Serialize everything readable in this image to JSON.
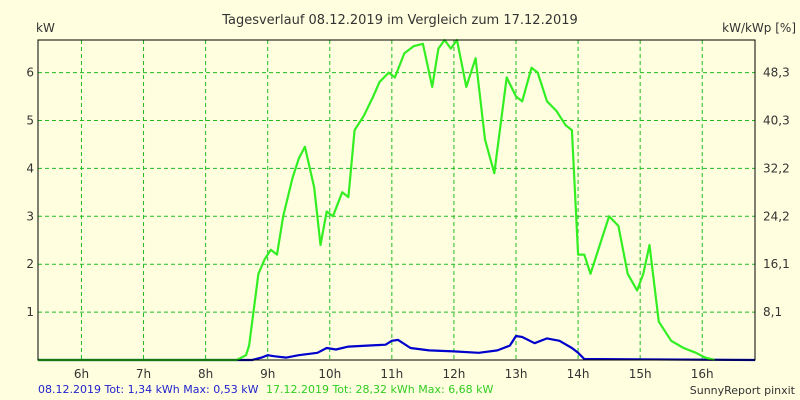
{
  "chart_data": {
    "type": "line",
    "title": "Tagesverlauf 08.12.2019 im Vergleich zum 17.12.2019",
    "ylabel_left": "kW",
    "ylabel_right": "kW/kWp [%]",
    "x_tick_labels": [
      "6h",
      "7h",
      "8h",
      "9h",
      "10h",
      "11h",
      "12h",
      "13h",
      "14h",
      "15h",
      "16h"
    ],
    "x_ticks": [
      6,
      7,
      8,
      9,
      10,
      11,
      12,
      13,
      14,
      15,
      16
    ],
    "xlim": [
      5.3,
      16.85
    ],
    "y_ticks_left": [
      1,
      2,
      3,
      4,
      5,
      6
    ],
    "y_tick_labels_left": [
      "1",
      "2",
      "3",
      "4",
      "5",
      "6"
    ],
    "y_tick_labels_right": [
      "8,1",
      "16,1",
      "24,2",
      "32,2",
      "40,3",
      "48,3"
    ],
    "ylim": [
      0,
      6.68
    ],
    "grid": true,
    "series": [
      {
        "name": "08.12.2019",
        "color": "#0000cc",
        "x": [
          5.3,
          8.75,
          8.9,
          9.0,
          9.1,
          9.3,
          9.5,
          9.8,
          9.95,
          10.1,
          10.3,
          10.6,
          10.9,
          11.0,
          11.1,
          11.3,
          11.6,
          12.0,
          12.4,
          12.7,
          12.9,
          13.0,
          13.1,
          13.3,
          13.5,
          13.7,
          13.9,
          14.0,
          14.1,
          16.85
        ],
        "values": [
          0,
          0,
          0.05,
          0.1,
          0.08,
          0.05,
          0.1,
          0.15,
          0.25,
          0.22,
          0.28,
          0.3,
          0.32,
          0.4,
          0.42,
          0.25,
          0.2,
          0.18,
          0.15,
          0.2,
          0.3,
          0.5,
          0.48,
          0.35,
          0.45,
          0.4,
          0.25,
          0.15,
          0.02,
          0
        ]
      },
      {
        "name": "17.12.2019",
        "color": "#33ee22",
        "x": [
          5.3,
          8.5,
          8.65,
          8.7,
          8.85,
          8.95,
          9.05,
          9.15,
          9.25,
          9.4,
          9.5,
          9.6,
          9.75,
          9.85,
          9.95,
          10.05,
          10.2,
          10.3,
          10.4,
          10.55,
          10.7,
          10.8,
          10.95,
          11.05,
          11.2,
          11.35,
          11.5,
          11.65,
          11.75,
          11.85,
          11.95,
          12.05,
          12.2,
          12.35,
          12.5,
          12.65,
          12.85,
          13.0,
          13.1,
          13.25,
          13.35,
          13.5,
          13.65,
          13.8,
          13.9,
          14.0,
          14.1,
          14.2,
          14.35,
          14.5,
          14.65,
          14.8,
          14.95,
          15.05,
          15.15,
          15.3,
          15.5,
          15.7,
          15.9,
          16.05,
          16.2
        ],
        "values": [
          0,
          0,
          0.1,
          0.3,
          1.8,
          2.1,
          2.3,
          2.2,
          3.0,
          3.8,
          4.2,
          4.45,
          3.6,
          2.4,
          3.1,
          3.0,
          3.5,
          3.4,
          4.8,
          5.1,
          5.5,
          5.8,
          6.0,
          5.9,
          6.4,
          6.55,
          6.6,
          5.7,
          6.5,
          6.68,
          6.5,
          6.68,
          5.7,
          6.3,
          4.6,
          3.9,
          5.9,
          5.5,
          5.4,
          6.1,
          6.0,
          5.4,
          5.2,
          4.9,
          4.8,
          2.2,
          2.2,
          1.8,
          2.4,
          3.0,
          2.8,
          1.8,
          1.45,
          1.8,
          2.4,
          0.8,
          0.4,
          0.25,
          0.15,
          0.05,
          0
        ]
      }
    ],
    "legend_position": "bottom-left"
  },
  "footer": {
    "series1_text": "08.12.2019 Tot: 1,34 kWh Max: 0,53 kW",
    "series2_text": "17.12.2019 Tot: 28,32 kWh Max: 6,68 kW",
    "credit": "SunnyReport pinxit"
  },
  "colors": {
    "background": "#ffffe0",
    "grid": "#22bb22",
    "series1": "#0000cc",
    "series2": "#33ee22",
    "footer_series1": "#2222cc",
    "footer_series2": "#33cc22"
  }
}
